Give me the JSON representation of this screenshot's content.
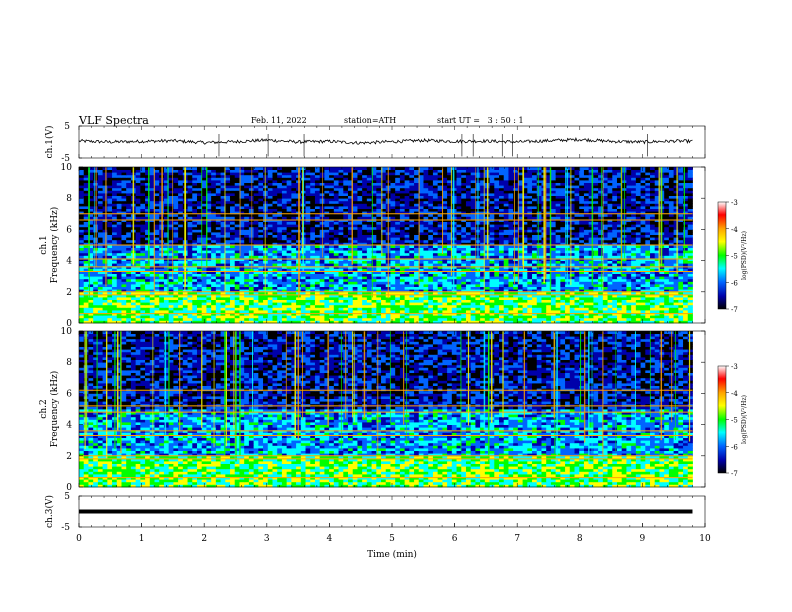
{
  "header": {
    "title": "VLF Spectra",
    "date": "Feb. 11, 2022",
    "station": "station=ATH",
    "start_ut": "start UT =   3 : 50 : 1"
  },
  "colorbar": {
    "label": "log(PSD)(V²/Hz)",
    "ticks": [
      "-3",
      "-4",
      "-5",
      "-6",
      "-7"
    ],
    "colors": [
      "#ffffff",
      "#ff0000",
      "#ffa500",
      "#ffff00",
      "#00ff00",
      "#00ffff",
      "#0064ff",
      "#0000aa",
      "#000000"
    ]
  },
  "chart_data": [
    {
      "type": "line",
      "name": "ch1_waveform",
      "ylabel": "ch.1(V)",
      "ylim": [
        -5,
        5
      ],
      "ytick_labels": [
        "5",
        "-5"
      ],
      "x": [
        0,
        0.5,
        1,
        1.5,
        2,
        2.5,
        3,
        3.5,
        4,
        4.5,
        5,
        5.5,
        6,
        6.5,
        7,
        7.5,
        8,
        8.5,
        9,
        9.5,
        9.8
      ],
      "y": [
        0.3,
        0.0,
        0.2,
        0.4,
        -0.2,
        0.1,
        0.6,
        0.0,
        0.2,
        -0.3,
        0.1,
        0.5,
        0.2,
        0.3,
        0.0,
        0.4,
        0.8,
        0.2,
        0.0,
        0.3,
        0.2
      ]
    },
    {
      "type": "heatmap",
      "name": "ch1_spectrogram",
      "ylabel": "ch.1\nFrequency (kHz)",
      "ylim": [
        0,
        10
      ],
      "yticks": [
        "0",
        "2",
        "4",
        "6",
        "8",
        "10"
      ],
      "xlim": [
        0,
        9.8
      ],
      "z_range": [
        -7,
        -3
      ],
      "narrowband_lines_khz": [
        0.6,
        1.8,
        2.0,
        3.3,
        3.6,
        4.1,
        5.0,
        6.6,
        7.0
      ]
    },
    {
      "type": "heatmap",
      "name": "ch2_spectrogram",
      "ylabel": "ch.2\nFrequency (kHz)",
      "ylim": [
        0,
        10
      ],
      "yticks": [
        "0",
        "2",
        "4",
        "6",
        "8",
        "10"
      ],
      "xlim": [
        0,
        9.8
      ],
      "z_range": [
        -7,
        -3
      ],
      "narrowband_lines_khz": [
        0.6,
        1.8,
        2.0,
        3.3,
        3.6,
        4.8,
        5.2,
        6.2
      ]
    },
    {
      "type": "line",
      "name": "ch3_waveform",
      "ylabel": "ch.3(V)",
      "ylim": [
        -5,
        5
      ],
      "ytick_labels": [
        "5",
        "-5"
      ],
      "xlabel": "Time (min)",
      "xticks": [
        "0",
        "1",
        "2",
        "3",
        "4",
        "5",
        "6",
        "7",
        "8",
        "9",
        "10"
      ],
      "x": [
        0,
        9.8
      ],
      "y": [
        0,
        0
      ]
    }
  ]
}
